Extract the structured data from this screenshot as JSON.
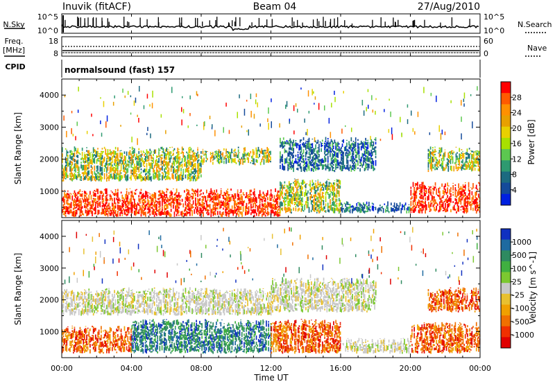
{
  "header": {
    "station": "Inuvik (fitACF)",
    "beam": "Beam 04",
    "date": "27/Aug/2010"
  },
  "nsky_panel": {
    "left_label": "N.Sky",
    "right_label": "N.Search",
    "left_ticks": [
      "10^5",
      "10^0"
    ],
    "right_ticks": [
      "10^5",
      "10^0"
    ]
  },
  "freq_panel": {
    "left_label": "Freq.",
    "left_unit": "[MHz]",
    "right_label": "Nave",
    "left_ticks": [
      "18",
      "8"
    ],
    "right_ticks": [
      "60",
      "0"
    ]
  },
  "cpid": {
    "label": "CPID",
    "mode": "normalsound (fast) 157"
  },
  "x_axis": {
    "label": "Time UT",
    "ticks": [
      "00:00",
      "04:00",
      "08:00",
      "12:00",
      "16:00",
      "20:00",
      "00:00"
    ]
  },
  "chart_data": [
    {
      "type": "heatmap",
      "title": "",
      "xlabel": "Time UT",
      "ylabel": "Slant Range [km]",
      "x_range_hours": [
        0,
        24
      ],
      "ylim": [
        180,
        4500
      ],
      "y_ticks": [
        1000,
        2000,
        3000,
        4000
      ],
      "colorbar": {
        "label": "Power [dB]",
        "ticks": [
          "28",
          "24",
          "20",
          "16",
          "12",
          "8",
          "4"
        ],
        "colors": [
          "#ff0000",
          "#ff5a00",
          "#ff9000",
          "#e8a000",
          "#e8d000",
          "#a8e000",
          "#5cc850",
          "#2e9a70",
          "#1c6a80",
          "#144a9a",
          "#0020e0"
        ]
      },
      "echo_bands": [
        {
          "x": [
            0,
            12.5
          ],
          "y": [
            200,
            1100
          ],
          "level": "high"
        },
        {
          "x": [
            12.5,
            16
          ],
          "y": [
            300,
            1400
          ],
          "level": "medium"
        },
        {
          "x": [
            16,
            20
          ],
          "y": [
            300,
            700
          ],
          "level": "low"
        },
        {
          "x": [
            20,
            24
          ],
          "y": [
            300,
            1300
          ],
          "level": "high"
        },
        {
          "x": [
            0,
            8
          ],
          "y": [
            1300,
            2400
          ],
          "level": "medium"
        },
        {
          "x": [
            8,
            12
          ],
          "y": [
            1800,
            2400
          ],
          "level": "medium"
        },
        {
          "x": [
            12.5,
            18
          ],
          "y": [
            1600,
            2700
          ],
          "level": "low"
        },
        {
          "x": [
            21,
            24
          ],
          "y": [
            1600,
            2400
          ],
          "level": "medium"
        }
      ]
    },
    {
      "type": "heatmap",
      "title": "",
      "xlabel": "Time UT",
      "ylabel": "Slant Range [km]",
      "x_range_hours": [
        0,
        24
      ],
      "ylim": [
        180,
        4500
      ],
      "y_ticks": [
        1000,
        2000,
        3000,
        4000
      ],
      "colorbar": {
        "label": "Velocity [m s^-1]",
        "ticks": [
          "1000",
          "500",
          "100",
          "25",
          "-25",
          "-100",
          "-500",
          "-1000"
        ],
        "colors": [
          "#1030c0",
          "#1e6aa0",
          "#2e8a60",
          "#40b040",
          "#7cc830",
          "#c8c8c8",
          "#e8c030",
          "#f0a000",
          "#f07000",
          "#f03000",
          "#e00000"
        ]
      },
      "echo_bands": [
        {
          "x": [
            0,
            4
          ],
          "y": [
            300,
            1200
          ],
          "level": "negative"
        },
        {
          "x": [
            4,
            12
          ],
          "y": [
            300,
            1400
          ],
          "level": "positive"
        },
        {
          "x": [
            12,
            16
          ],
          "y": [
            300,
            1400
          ],
          "level": "negative"
        },
        {
          "x": [
            16,
            20
          ],
          "y": [
            300,
            800
          ],
          "level": "near-zero"
        },
        {
          "x": [
            20,
            24
          ],
          "y": [
            300,
            1300
          ],
          "level": "negative"
        },
        {
          "x": [
            0,
            12
          ],
          "y": [
            1500,
            2400
          ],
          "level": "near-zero"
        },
        {
          "x": [
            12,
            18
          ],
          "y": [
            1600,
            2700
          ],
          "level": "near-zero"
        },
        {
          "x": [
            21,
            24
          ],
          "y": [
            1600,
            2400
          ],
          "level": "negative"
        }
      ]
    }
  ]
}
